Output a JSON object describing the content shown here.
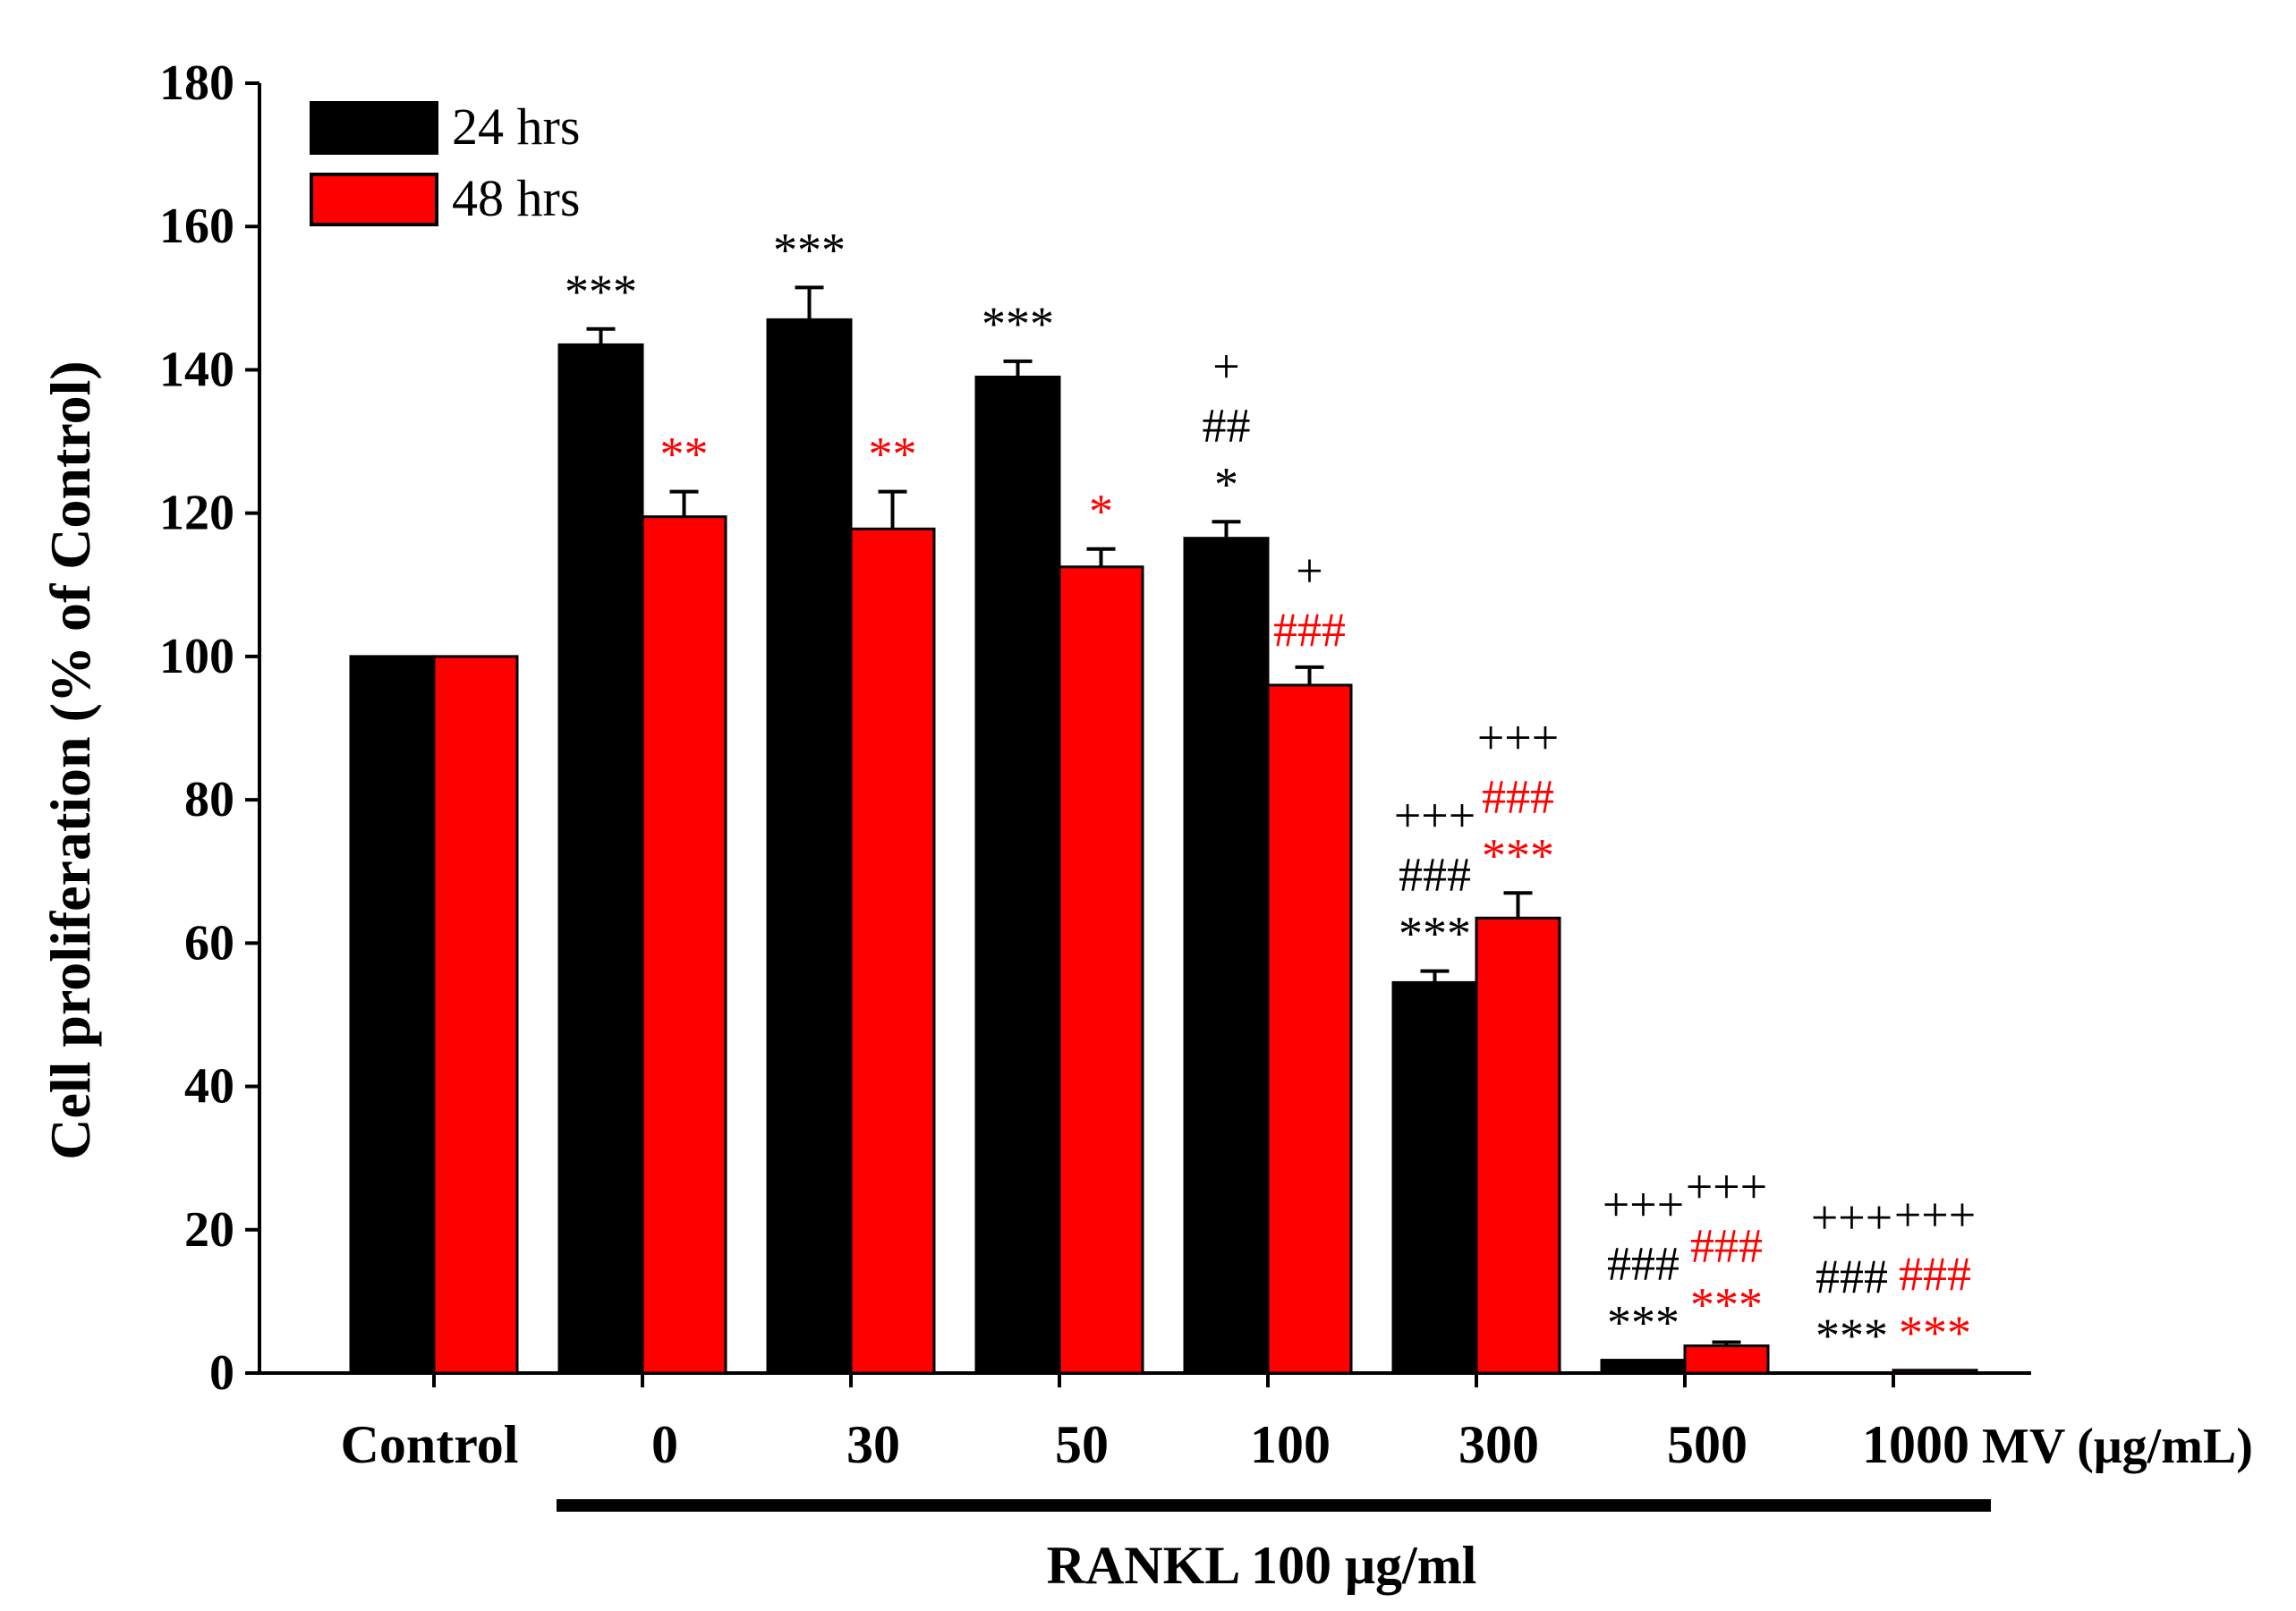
{
  "chart_data": {
    "type": "bar",
    "ylabel": "Cell proliferation (% of Control)",
    "xunit": "MV (μg/mL)",
    "group_label": "RANKL 100 μg/ml",
    "ylim": [
      0,
      180
    ],
    "yticks": [
      0,
      20,
      40,
      60,
      80,
      100,
      120,
      140,
      160,
      180
    ],
    "categories": [
      "Control",
      "0",
      "30",
      "50",
      "100",
      "300",
      "500",
      "1000"
    ],
    "series": [
      {
        "name": "24 hrs",
        "color": "#000000",
        "values": [
          100,
          143.5,
          147,
          139,
          116.5,
          54.5,
          1.8,
          0
        ],
        "errors": [
          0,
          2.2,
          4.5,
          2.2,
          2.3,
          1.6,
          0,
          0
        ]
      },
      {
        "name": "48 hrs",
        "color": "#ff0000",
        "values": [
          100,
          119.5,
          117.8,
          112.5,
          96,
          63.5,
          3.8,
          0.4
        ],
        "errors": [
          0,
          3.5,
          5.2,
          2.5,
          2.5,
          3.5,
          0.5,
          0
        ]
      }
    ],
    "significance": [
      {
        "category": "0",
        "series": 0,
        "lines": [
          {
            "text": "***",
            "color": "#000000"
          }
        ]
      },
      {
        "category": "0",
        "series": 1,
        "lines": [
          {
            "text": "**",
            "color": "#ff0000"
          }
        ]
      },
      {
        "category": "30",
        "series": 0,
        "lines": [
          {
            "text": "***",
            "color": "#000000"
          }
        ]
      },
      {
        "category": "30",
        "series": 1,
        "lines": [
          {
            "text": "**",
            "color": "#ff0000"
          }
        ]
      },
      {
        "category": "50",
        "series": 0,
        "lines": [
          {
            "text": "***",
            "color": "#000000"
          }
        ]
      },
      {
        "category": "50",
        "series": 1,
        "lines": [
          {
            "text": "*",
            "color": "#ff0000"
          }
        ]
      },
      {
        "category": "100",
        "series": 0,
        "lines": [
          {
            "text": "+",
            "color": "#000000"
          },
          {
            "text": "##",
            "color": "#000000"
          },
          {
            "text": "*",
            "color": "#000000"
          }
        ]
      },
      {
        "category": "100",
        "series": 1,
        "lines": [
          {
            "text": "+",
            "color": "#000000"
          },
          {
            "text": "###",
            "color": "#ff0000"
          }
        ]
      },
      {
        "category": "300",
        "series": 0,
        "lines": [
          {
            "text": "+++",
            "color": "#000000"
          },
          {
            "text": "###",
            "color": "#000000"
          },
          {
            "text": "***",
            "color": "#000000"
          }
        ]
      },
      {
        "category": "300",
        "series": 1,
        "lines": [
          {
            "text": "+++",
            "color": "#000000"
          },
          {
            "text": "###",
            "color": "#ff0000"
          },
          {
            "text": "***",
            "color": "#ff0000"
          }
        ]
      },
      {
        "category": "500",
        "series": 0,
        "lines": [
          {
            "text": "+++",
            "color": "#000000"
          },
          {
            "text": "###",
            "color": "#000000"
          },
          {
            "text": "***",
            "color": "#000000"
          }
        ]
      },
      {
        "category": "500",
        "series": 1,
        "lines": [
          {
            "text": "+++",
            "color": "#000000"
          },
          {
            "text": "###",
            "color": "#ff0000"
          },
          {
            "text": "***",
            "color": "#ff0000"
          }
        ]
      },
      {
        "category": "1000",
        "series": 0,
        "lines": [
          {
            "text": "+++",
            "color": "#000000"
          },
          {
            "text": "###",
            "color": "#000000"
          },
          {
            "text": "***",
            "color": "#000000"
          }
        ]
      },
      {
        "category": "1000",
        "series": 1,
        "lines": [
          {
            "text": "+++",
            "color": "#000000"
          },
          {
            "text": "###",
            "color": "#ff0000"
          },
          {
            "text": "***",
            "color": "#ff0000"
          }
        ]
      }
    ],
    "legend": {
      "position": "top-left"
    },
    "grid": false
  }
}
